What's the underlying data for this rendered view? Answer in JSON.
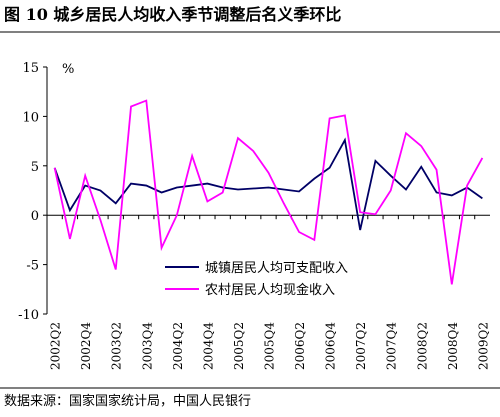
{
  "chart_data": {
    "type": "line",
    "title": "图 10   城乡居民人均收入季节调整后名义季环比",
    "y_unit": "%",
    "source": "数据来源：国家国家统计局，中国人民银行",
    "categories": [
      "2002Q2",
      null,
      "2002Q4",
      null,
      "2003Q2",
      null,
      "2003Q4",
      null,
      "2004Q2",
      null,
      "2004Q4",
      null,
      "2005Q2",
      null,
      "2005Q4",
      null,
      "2006Q2",
      null,
      "2006Q4",
      null,
      "2007Q2",
      null,
      "2007Q4",
      null,
      "2008Q2",
      null,
      "2008Q4",
      null,
      "2009Q2"
    ],
    "series": [
      {
        "name": "城镇居民人均可支配收入",
        "color": "#000066",
        "values": [
          4.8,
          0.5,
          3.0,
          2.5,
          1.2,
          3.2,
          3.0,
          2.3,
          2.8,
          3.0,
          3.2,
          2.8,
          2.6,
          2.7,
          2.8,
          2.6,
          2.4,
          3.7,
          4.8,
          7.6,
          -1.5,
          5.5,
          4.0,
          2.6,
          4.9,
          2.3,
          2.0,
          2.8,
          1.7
        ]
      },
      {
        "name": "农村居民人均现金收入",
        "color": "#ff00ff",
        "values": [
          4.8,
          -2.4,
          4.0,
          -0.5,
          -5.5,
          11.0,
          11.6,
          -3.3,
          0.0,
          6.0,
          1.4,
          2.3,
          7.8,
          6.5,
          4.3,
          1.2,
          -1.7,
          -2.5,
          9.8,
          10.1,
          0.3,
          0.1,
          2.5,
          8.3,
          7.0,
          4.6,
          -7.0,
          3.0,
          5.8
        ]
      }
    ],
    "ylim": [
      -10,
      15
    ],
    "yticks": [
      -10,
      -5,
      0,
      5,
      10,
      15
    ],
    "legend": "lower center"
  }
}
